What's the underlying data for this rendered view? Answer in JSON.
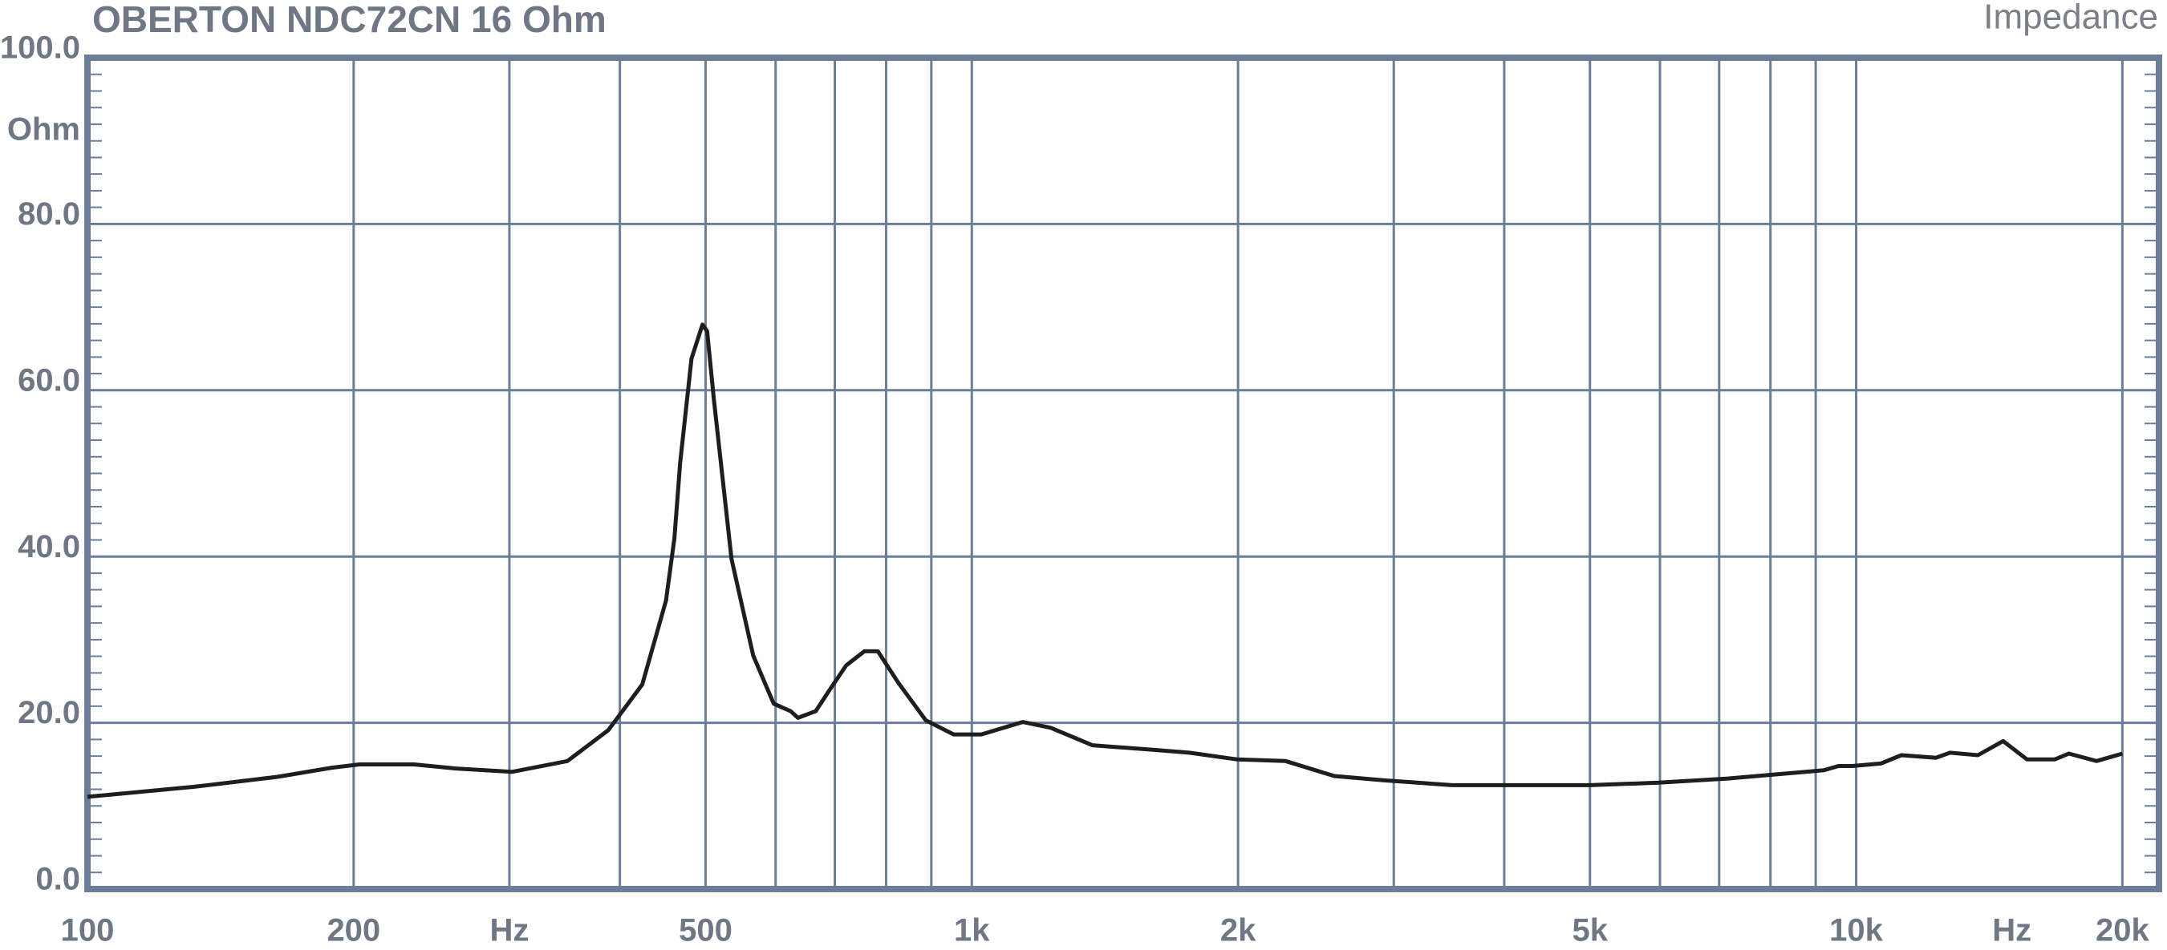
{
  "chart_data": {
    "type": "line",
    "title": "OBERTON NDC72CN 16 Ohm",
    "subtitle": "Impedance",
    "y_unit": "Ohm",
    "x": [
      100,
      132,
      164,
      189,
      203,
      234,
      261,
      302,
      349,
      388,
      424,
      451,
      461,
      468,
      482,
      496,
      502,
      511,
      535,
      566,
      597,
      624,
      636,
      666,
      690,
      721,
      756,
      783,
      826,
      887,
      954,
      1025,
      1142,
      1228,
      1369,
      1581,
      1762,
      1994,
      2264,
      2570,
      2918,
      3492,
      4178,
      5000,
      5980,
      7160,
      8560,
      9200,
      9550,
      9900,
      10660,
      11250,
      12310,
      12770,
      13730,
      14660,
      15600,
      16780,
      17400,
      18700,
      20000
    ],
    "values": [
      11.1,
      12.3,
      13.5,
      14.6,
      15.0,
      15.0,
      14.5,
      14.1,
      15.4,
      19.1,
      24.6,
      34.7,
      42.2,
      51.3,
      63.8,
      67.9,
      67.1,
      58.8,
      39.7,
      28.1,
      22.3,
      21.4,
      20.6,
      21.4,
      23.9,
      26.9,
      28.6,
      28.6,
      24.8,
      20.3,
      18.6,
      18.6,
      20.1,
      19.4,
      17.3,
      16.8,
      16.4,
      15.6,
      15.4,
      13.6,
      13.1,
      12.5,
      12.5,
      12.5,
      12.8,
      13.3,
      14.0,
      14.3,
      14.8,
      14.8,
      15.1,
      16.1,
      15.8,
      16.4,
      16.1,
      17.8,
      15.6,
      15.6,
      16.3,
      15.4,
      16.3
    ],
    "color": "#1e1e1e",
    "x_log": true,
    "xlim": [
      100,
      22000
    ],
    "ylim": [
      0,
      100
    ],
    "xticks": [
      100,
      200,
      {
        "value": 300,
        "label": "Hz"
      },
      500,
      {
        "value": 1000,
        "label": "1k"
      },
      {
        "value": 2000,
        "label": "2k"
      },
      {
        "value": 5000,
        "label": "5k"
      },
      {
        "value": 10000,
        "label": "10k"
      },
      {
        "value": 15000,
        "label": "Hz"
      },
      {
        "value": 20000,
        "label": "20k"
      }
    ],
    "xgrid": [
      200,
      300,
      400,
      500,
      600,
      700,
      800,
      900,
      1000,
      2000,
      3000,
      4000,
      5000,
      6000,
      7000,
      8000,
      9000,
      10000,
      20000
    ],
    "yticks": [
      {
        "value": 0,
        "label": "0.0"
      },
      {
        "value": 20,
        "label": "20.0"
      },
      {
        "value": 40,
        "label": "40.0"
      },
      {
        "value": 60,
        "label": "60.0"
      },
      {
        "value": 80,
        "label": "80.0"
      },
      {
        "value": 100,
        "label": "100.0"
      }
    ],
    "yminor_step": 2,
    "grid": true
  }
}
